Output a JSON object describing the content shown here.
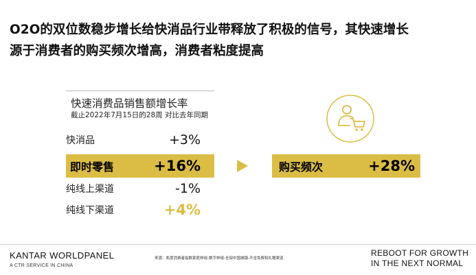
{
  "headline": {
    "line1": "O2O的双位数稳步增长给快消品行业带释放了积极的信号，其快速增长",
    "line2": "源于消费者的购买频次增高，消费者粘度提高"
  },
  "stats": {
    "title": "快速消费品销售额增长率",
    "subtitle": "截止2022年7月15日的28周 对比去年同期",
    "rows": [
      {
        "label": "快消品",
        "value": "+3%"
      },
      {
        "label": "即时零售",
        "value": "+16%"
      },
      {
        "label": "纯线上渠道",
        "value": "-1%"
      },
      {
        "label": "纯线下渠道",
        "value": "+4%"
      }
    ]
  },
  "highlight": {
    "label": "购买频次",
    "value": "+28%"
  },
  "icon": {
    "name": "shopper-cart-icon",
    "color": "#dbbd45"
  },
  "colors": {
    "accent": "#dbbd45"
  },
  "footer": {
    "brand": "KANTAR WORLDPANEL",
    "brand_sub": "A CTR SERVICE IN CHINA",
    "source": "来源：凯度消费者指数家庭样组-数字样组-全部中国城镇-不含免费和礼赠渠道",
    "tagline_line1": "REBOOT FOR GROWTH",
    "tagline_line2": "IN THE NEXT NORMAL"
  }
}
